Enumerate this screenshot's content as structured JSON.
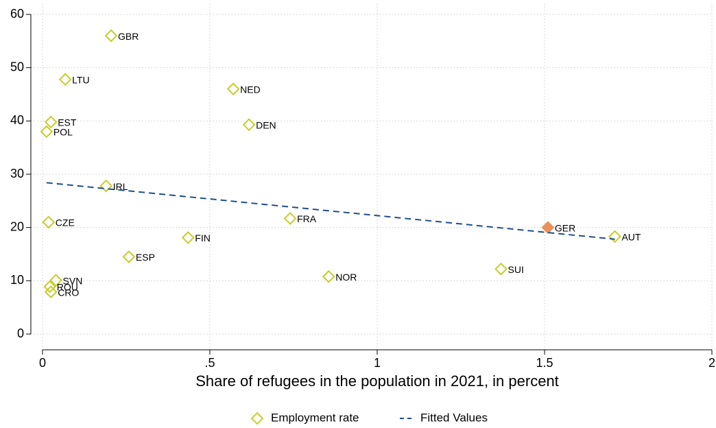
{
  "chart_data": {
    "type": "scatter",
    "x_label": "Share of refugees in the population in 2021, in percent",
    "xlim": [
      0,
      2
    ],
    "ylim": [
      0,
      60
    ],
    "xticks": [
      0,
      {
        "value": 0.5,
        "label": ".5"
      },
      1,
      1.5,
      2
    ],
    "yticks": [
      0,
      10,
      20,
      30,
      40,
      50,
      60
    ],
    "grid": true,
    "legend": "bottom",
    "series": [
      {
        "name": "Employment rate",
        "type": "scatter",
        "color": "#c8cc2a",
        "labels": [
          "GBR",
          "LTU",
          "NED",
          "EST",
          "DEN",
          "POL",
          "IRL",
          "CZE",
          "FRA",
          "GER",
          "FIN",
          "AUT",
          "ESP",
          "SUI",
          "SVN",
          "NOR",
          "ROU",
          "CRO"
        ],
        "x": [
          0.205,
          0.068,
          0.57,
          0.025,
          0.617,
          0.012,
          0.19,
          0.018,
          0.74,
          1.51,
          0.435,
          1.71,
          0.258,
          1.37,
          0.04,
          0.855,
          0.022,
          0.025
        ],
        "values": [
          56,
          47.8,
          46,
          39.8,
          39.3,
          38,
          27.8,
          21,
          21.7,
          20,
          18.1,
          18.3,
          14.5,
          12.2,
          10.1,
          10.8,
          8.9,
          7.9
        ],
        "colors": [
          "#c8cc2a",
          "#c8cc2a",
          "#c8cc2a",
          "#c8cc2a",
          "#c8cc2a",
          "#c8cc2a",
          "#c8cc2a",
          "#c8cc2a",
          "#c8cc2a",
          "#e8915a",
          "#c8cc2a",
          "#c8cc2a",
          "#c8cc2a",
          "#c8cc2a",
          "#c8cc2a",
          "#c8cc2a",
          "#c8cc2a",
          "#c8cc2a"
        ]
      },
      {
        "name": "Fitted Values",
        "type": "line",
        "color": "#1f4e89",
        "x": [
          0.012,
          1.71
        ],
        "values": [
          28.4,
          17.8
        ]
      }
    ]
  }
}
